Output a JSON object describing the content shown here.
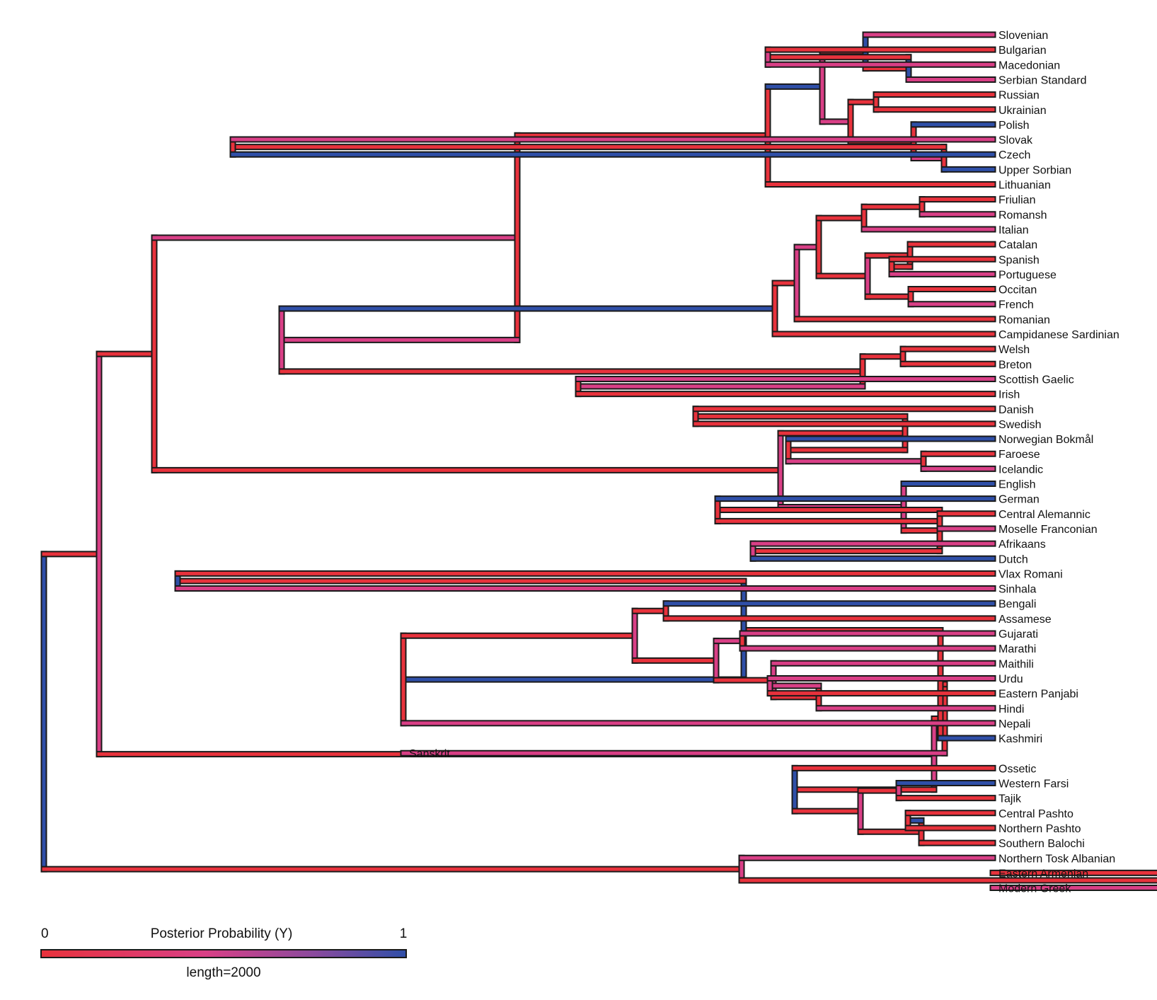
{
  "colors": {
    "low": "#e8323c",
    "mid": "#d93f86",
    "high": "#2f4fa8",
    "outline": "#1a1a1a"
  },
  "tree": {
    "kids": [
      {
        "kids": [
          {
            "kids": [
              {
                "kids": [
                  {
                    "kids": [
                      {
                        "kids": [
                          {
                            "name": "Slovenian"
                          },
                          {
                            "kids": [
                              {
                                "kids": [
                                  {
                                    "name": "Bulgarian"
                                  },
                                  {
                                    "name": "Macedonian"
                                  }
                                ]
                              },
                              {
                                "name": "Serbian Standard"
                              }
                            ]
                          }
                        ]
                      },
                      {
                        "kids": [
                          {
                            "kids": [
                              {
                                "name": "Russian"
                              },
                              {
                                "name": "Ukrainian"
                              }
                            ]
                          },
                          {
                            "kids": [
                              {
                                "name": "Polish"
                              },
                              {
                                "kids": [
                                  {
                                    "kids": [
                                      {
                                        "name": "Slovak"
                                      },
                                      {
                                        "name": "Czech"
                                      }
                                    ]
                                  },
                                  {
                                    "name": "Upper Sorbian"
                                  }
                                ]
                              }
                            ]
                          }
                        ]
                      }
                    ]
                  },
                  {
                    "name": "Lithuanian"
                  }
                ]
              },
              {
                "kids": [
                  {
                    "kids": [
                      {
                        "kids": [
                          {
                            "kids": [
                              {
                                "kids": [
                                  {
                                    "kids": [
                                      {
                                        "name": "Friulian"
                                      },
                                      {
                                        "name": "Romansh"
                                      }
                                    ]
                                  },
                                  {
                                    "name": "Italian"
                                  }
                                ]
                              },
                              {
                                "kids": [
                                  {
                                    "kids": [
                                      {
                                        "name": "Catalan"
                                      },
                                      {
                                        "kids": [
                                          {
                                            "name": "Spanish"
                                          },
                                          {
                                            "name": "Portuguese"
                                          }
                                        ]
                                      }
                                    ]
                                  },
                                  {
                                    "kids": [
                                      {
                                        "name": "Occitan"
                                      },
                                      {
                                        "name": "French"
                                      }
                                    ]
                                  }
                                ]
                              }
                            ]
                          },
                          {
                            "name": "Romanian"
                          }
                        ]
                      },
                      {
                        "name": "Campidanese Sardinian"
                      }
                    ]
                  },
                  {
                    "kids": [
                      {
                        "kids": [
                          {
                            "name": "Welsh"
                          },
                          {
                            "name": "Breton"
                          }
                        ]
                      },
                      {
                        "kids": [
                          {
                            "name": "Scottish Gaelic"
                          },
                          {
                            "name": "Irish"
                          }
                        ]
                      }
                    ]
                  }
                ]
              }
            ]
          },
          {
            "kids": [
              {
                "kids": [
                  {
                    "kids": [
                      {
                        "name": "Danish"
                      },
                      {
                        "name": "Swedish"
                      }
                    ]
                  },
                  {
                    "kids": [
                      {
                        "name": "Norwegian Bokmål"
                      },
                      {
                        "kids": [
                          {
                            "name": "Faroese"
                          },
                          {
                            "name": "Icelandic"
                          }
                        ]
                      }
                    ]
                  }
                ]
              },
              {
                "kids": [
                  {
                    "name": "English"
                  },
                  {
                    "kids": [
                      {
                        "kids": [
                          {
                            "name": "German"
                          },
                          {
                            "kids": [
                              {
                                "name": "Central Alemannic"
                              },
                              {
                                "name": "Moselle Franconian"
                              }
                            ]
                          }
                        ]
                      },
                      {
                        "kids": [
                          {
                            "name": "Afrikaans"
                          },
                          {
                            "name": "Dutch"
                          }
                        ]
                      }
                    ]
                  }
                ]
              }
            ]
          }
        ]
      },
      {
        "kids": [
          {
            "kids": [
              {
                "kids": [
                  {
                    "kids": [
                      {
                        "kids": [
                          {
                            "name": "Vlax Romani"
                          },
                          {
                            "name": "Sinhala"
                          }
                        ]
                      },
                      {
                        "kids": [
                          {
                            "kids": [
                              {
                                "kids": [
                                  {
                                    "name": "Bengali"
                                  },
                                  {
                                    "name": "Assamese"
                                  }
                                ]
                              },
                              {
                                "kids": [
                                  {
                                    "kids": [
                                      {
                                        "name": "Gujarati"
                                      },
                                      {
                                        "name": "Marathi"
                                      }
                                    ]
                                  },
                                  {
                                    "kids": [
                                      {
                                        "name": "Maithili"
                                      },
                                      {
                                        "kids": [
                                          {
                                            "kids": [
                                              {
                                                "name": "Urdu"
                                              },
                                              {
                                                "name": "Eastern Panjabi"
                                              }
                                            ]
                                          },
                                          {
                                            "name": "Hindi"
                                          }
                                        ]
                                      }
                                    ]
                                  }
                                ]
                              }
                            ]
                          },
                          {
                            "name": "Nepali"
                          }
                        ]
                      }
                    ]
                  },
                  {
                    "name": "Kashmiri"
                  }
                ]
              },
              {
                "name": "Sanskrit"
              }
            ]
          },
          {
            "kids": [
              {
                "name": "Ossetic"
              },
              {
                "kids": [
                  {
                    "kids": [
                      {
                        "name": "Western Farsi"
                      },
                      {
                        "name": "Tajik"
                      }
                    ]
                  },
                  {
                    "kids": [
                      {
                        "kids": [
                          {
                            "name": "Central Pashto"
                          },
                          {
                            "name": "Northern Pashto"
                          }
                        ]
                      },
                      {
                        "name": "Southern Balochi"
                      }
                    ]
                  }
                ]
              }
            ]
          }
        ]
      }
    ]
  },
  "outgroup": {
    "kids": [
      {
        "name": "Northern Tosk Albanian"
      },
      {
        "kids": [
          {
            "name": "Eastern Armenian"
          },
          {
            "name": "Modern Greek"
          }
        ]
      }
    ]
  },
  "legend": {
    "title": "Posterior Probability (Y)",
    "min_label": "0",
    "max_label": "1",
    "scale_label": "length=2000"
  }
}
